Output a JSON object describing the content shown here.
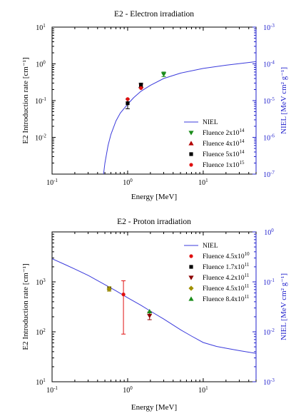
{
  "chart_data": [
    {
      "type": "scatter",
      "title": "E2 - Electron irradiation",
      "xlabel": "Energy [MeV]",
      "ylabel": "E2 Introduction rate [cm⁻¹]",
      "y2label": "NIEL [MeV cm² g⁻¹]",
      "xscale": "log",
      "yscale": "log",
      "y2scale": "log",
      "xlim": [
        0.1,
        50
      ],
      "ylim": [
        0.001,
        10
      ],
      "y2lim": [
        1e-07,
        0.001
      ],
      "x_ticks": [
        "10-1",
        "100",
        "101"
      ],
      "y_ticks": [
        "10-2",
        "10-1",
        "100",
        "101"
      ],
      "y2_ticks": [
        "10-7",
        "10-6",
        "10-5",
        "10-4",
        "10-3"
      ],
      "legend_position": "bottom-right",
      "niel": {
        "name": "NIEL",
        "axis": "right",
        "color": "#3b3bdc",
        "x": [
          0.48,
          0.5,
          0.55,
          0.6,
          0.7,
          0.8,
          1.0,
          1.2,
          1.5,
          2.0,
          3.0,
          5.0,
          10.0,
          20.0,
          50.0
        ],
        "y": [
          1e-07,
          2e-07,
          6e-07,
          1.2e-06,
          2.8e-06,
          4.6e-06,
          8e-06,
          1.2e-05,
          1.8e-05,
          2.6e-05,
          4e-05,
          5.6e-05,
          7.5e-05,
          9.2e-05,
          0.000115
        ]
      },
      "series": [
        {
          "name": "Fluence 2x10",
          "exp": "14",
          "marker": "triangle-down",
          "color": "#1a8c1a",
          "x": [
            3.0
          ],
          "y": [
            0.52
          ],
          "err": [
            [
              0.45,
              0.6
            ]
          ]
        },
        {
          "name": "Fluence 4x10",
          "exp": "14",
          "marker": "triangle-up",
          "color": "#b30000",
          "x": [
            1.5
          ],
          "y": [
            0.25
          ],
          "err": [
            [
              0.22,
              0.28
            ]
          ]
        },
        {
          "name": "Fluence 5x10",
          "exp": "14",
          "marker": "square",
          "color": "#000000",
          "x": [
            1.0,
            1.5
          ],
          "y": [
            0.085,
            0.26
          ],
          "err": [
            [
              0.06,
              0.11
            ],
            [
              0.23,
              0.3
            ]
          ]
        },
        {
          "name": "Fluence 1x10",
          "exp": "15",
          "marker": "circle",
          "color": "#e01010",
          "x": [
            1.0,
            1.5
          ],
          "y": [
            0.11,
            0.22
          ],
          "err": [
            null,
            null
          ]
        }
      ]
    },
    {
      "type": "scatter",
      "title": "E2 - Proton irradiation",
      "xlabel": "Energy [MeV]",
      "ylabel": "E2 Introduction rate [cm⁻¹]",
      "y2label": "NIEL [MeV cm² g⁻¹]",
      "xscale": "log",
      "yscale": "log",
      "y2scale": "log",
      "xlim": [
        0.1,
        50
      ],
      "ylim": [
        10,
        10000
      ],
      "y2lim": [
        0.001,
        1
      ],
      "x_ticks": [
        "10-1",
        "100",
        "101"
      ],
      "y_ticks": [
        "101",
        "102",
        "103"
      ],
      "y2_ticks": [
        "10-3",
        "10-2",
        "10-1",
        "100"
      ],
      "legend_position": "top-right",
      "niel": {
        "name": "NIEL",
        "axis": "right",
        "color": "#3b3bdc",
        "x": [
          0.1,
          0.15,
          0.2,
          0.3,
          0.5,
          0.7,
          1.0,
          1.5,
          2.0,
          3.0,
          5.0,
          7.0,
          10.0,
          15.0,
          20.0,
          30.0,
          50.0
        ],
        "y": [
          0.29,
          0.22,
          0.18,
          0.135,
          0.088,
          0.066,
          0.048,
          0.034,
          0.026,
          0.018,
          0.011,
          0.0082,
          0.0061,
          0.0051,
          0.0047,
          0.0042,
          0.0037
        ]
      },
      "series": [
        {
          "name": "Fluence 4.5x10",
          "exp": "10",
          "marker": "circle",
          "color": "#e01010",
          "x": [
            0.88
          ],
          "y": [
            560
          ],
          "err": [
            [
              90,
              1050
            ]
          ]
        },
        {
          "name": "Fluence 1.7x10",
          "exp": "11",
          "marker": "square",
          "color": "#000000",
          "x": [
            0.57
          ],
          "y": [
            730
          ],
          "err": [
            null
          ]
        },
        {
          "name": "Fluence 4.2x10",
          "exp": "11",
          "marker": "triangle-down",
          "color": "#8b0000",
          "x": [
            1.95
          ],
          "y": [
            210
          ],
          "err": [
            [
              175,
              250
            ]
          ]
        },
        {
          "name": "Fluence 4.5x10",
          "exp": "11",
          "marker": "diamond",
          "color": "#a09000",
          "x": [
            0.57
          ],
          "y": [
            720
          ],
          "err": [
            [
              650,
              800
            ]
          ]
        },
        {
          "name": "Fluence 8.4x10",
          "exp": "11",
          "marker": "triangle-up",
          "color": "#1a8c1a",
          "x": [
            1.95
          ],
          "y": [
            255
          ],
          "err": [
            null
          ]
        }
      ]
    }
  ]
}
